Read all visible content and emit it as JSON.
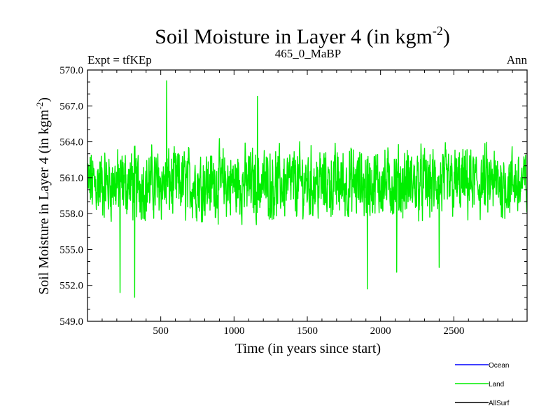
{
  "chart_data": {
    "type": "line",
    "title": "Soil Moisture in Layer 4 (in kgm",
    "title_sup": "-2",
    "title_close": ")",
    "subtitle_left": "Expt = tfKEp",
    "subtitle_center": "465_0_MaBP",
    "subtitle_right": "Ann",
    "xlabel": "Time (in years since start)",
    "ylabel": "Soil Moisture in Layer 4 (in kgm",
    "ylabel_sup": "-2",
    "ylabel_close": ")",
    "xlim": [
      0,
      3000
    ],
    "ylim": [
      549.0,
      570.0
    ],
    "x_ticks": [
      500,
      1000,
      1500,
      2000,
      2500
    ],
    "x_tick_labels": [
      "500",
      "1000",
      "1500",
      "2000",
      "2500"
    ],
    "y_ticks": [
      549.0,
      552.0,
      555.0,
      558.0,
      561.0,
      564.0,
      567.0,
      570.0
    ],
    "y_tick_labels": [
      "549.0",
      "552.0",
      "555.0",
      "558.0",
      "561.0",
      "564.0",
      "567.0",
      "570.0"
    ],
    "series": [
      {
        "name": "Land",
        "color": "#00ee00",
        "mean": 560.5,
        "approx_range": [
          551.0,
          569.0
        ],
        "notable_points": [
          {
            "x": 222,
            "y": 551.4
          },
          {
            "x": 322,
            "y": 551.0
          },
          {
            "x": 540,
            "y": 569.1
          },
          {
            "x": 1160,
            "y": 567.8
          },
          {
            "x": 1910,
            "y": 551.7
          },
          {
            "x": 2110,
            "y": 553.1
          },
          {
            "x": 2400,
            "y": 553.5
          }
        ]
      }
    ],
    "legend": {
      "placement": "bottom-right",
      "items": [
        {
          "name": "Ocean",
          "color": "#0000ff"
        },
        {
          "name": "Land",
          "color": "#00ee00"
        },
        {
          "name": "AllSurf",
          "color": "#000000"
        }
      ]
    }
  }
}
